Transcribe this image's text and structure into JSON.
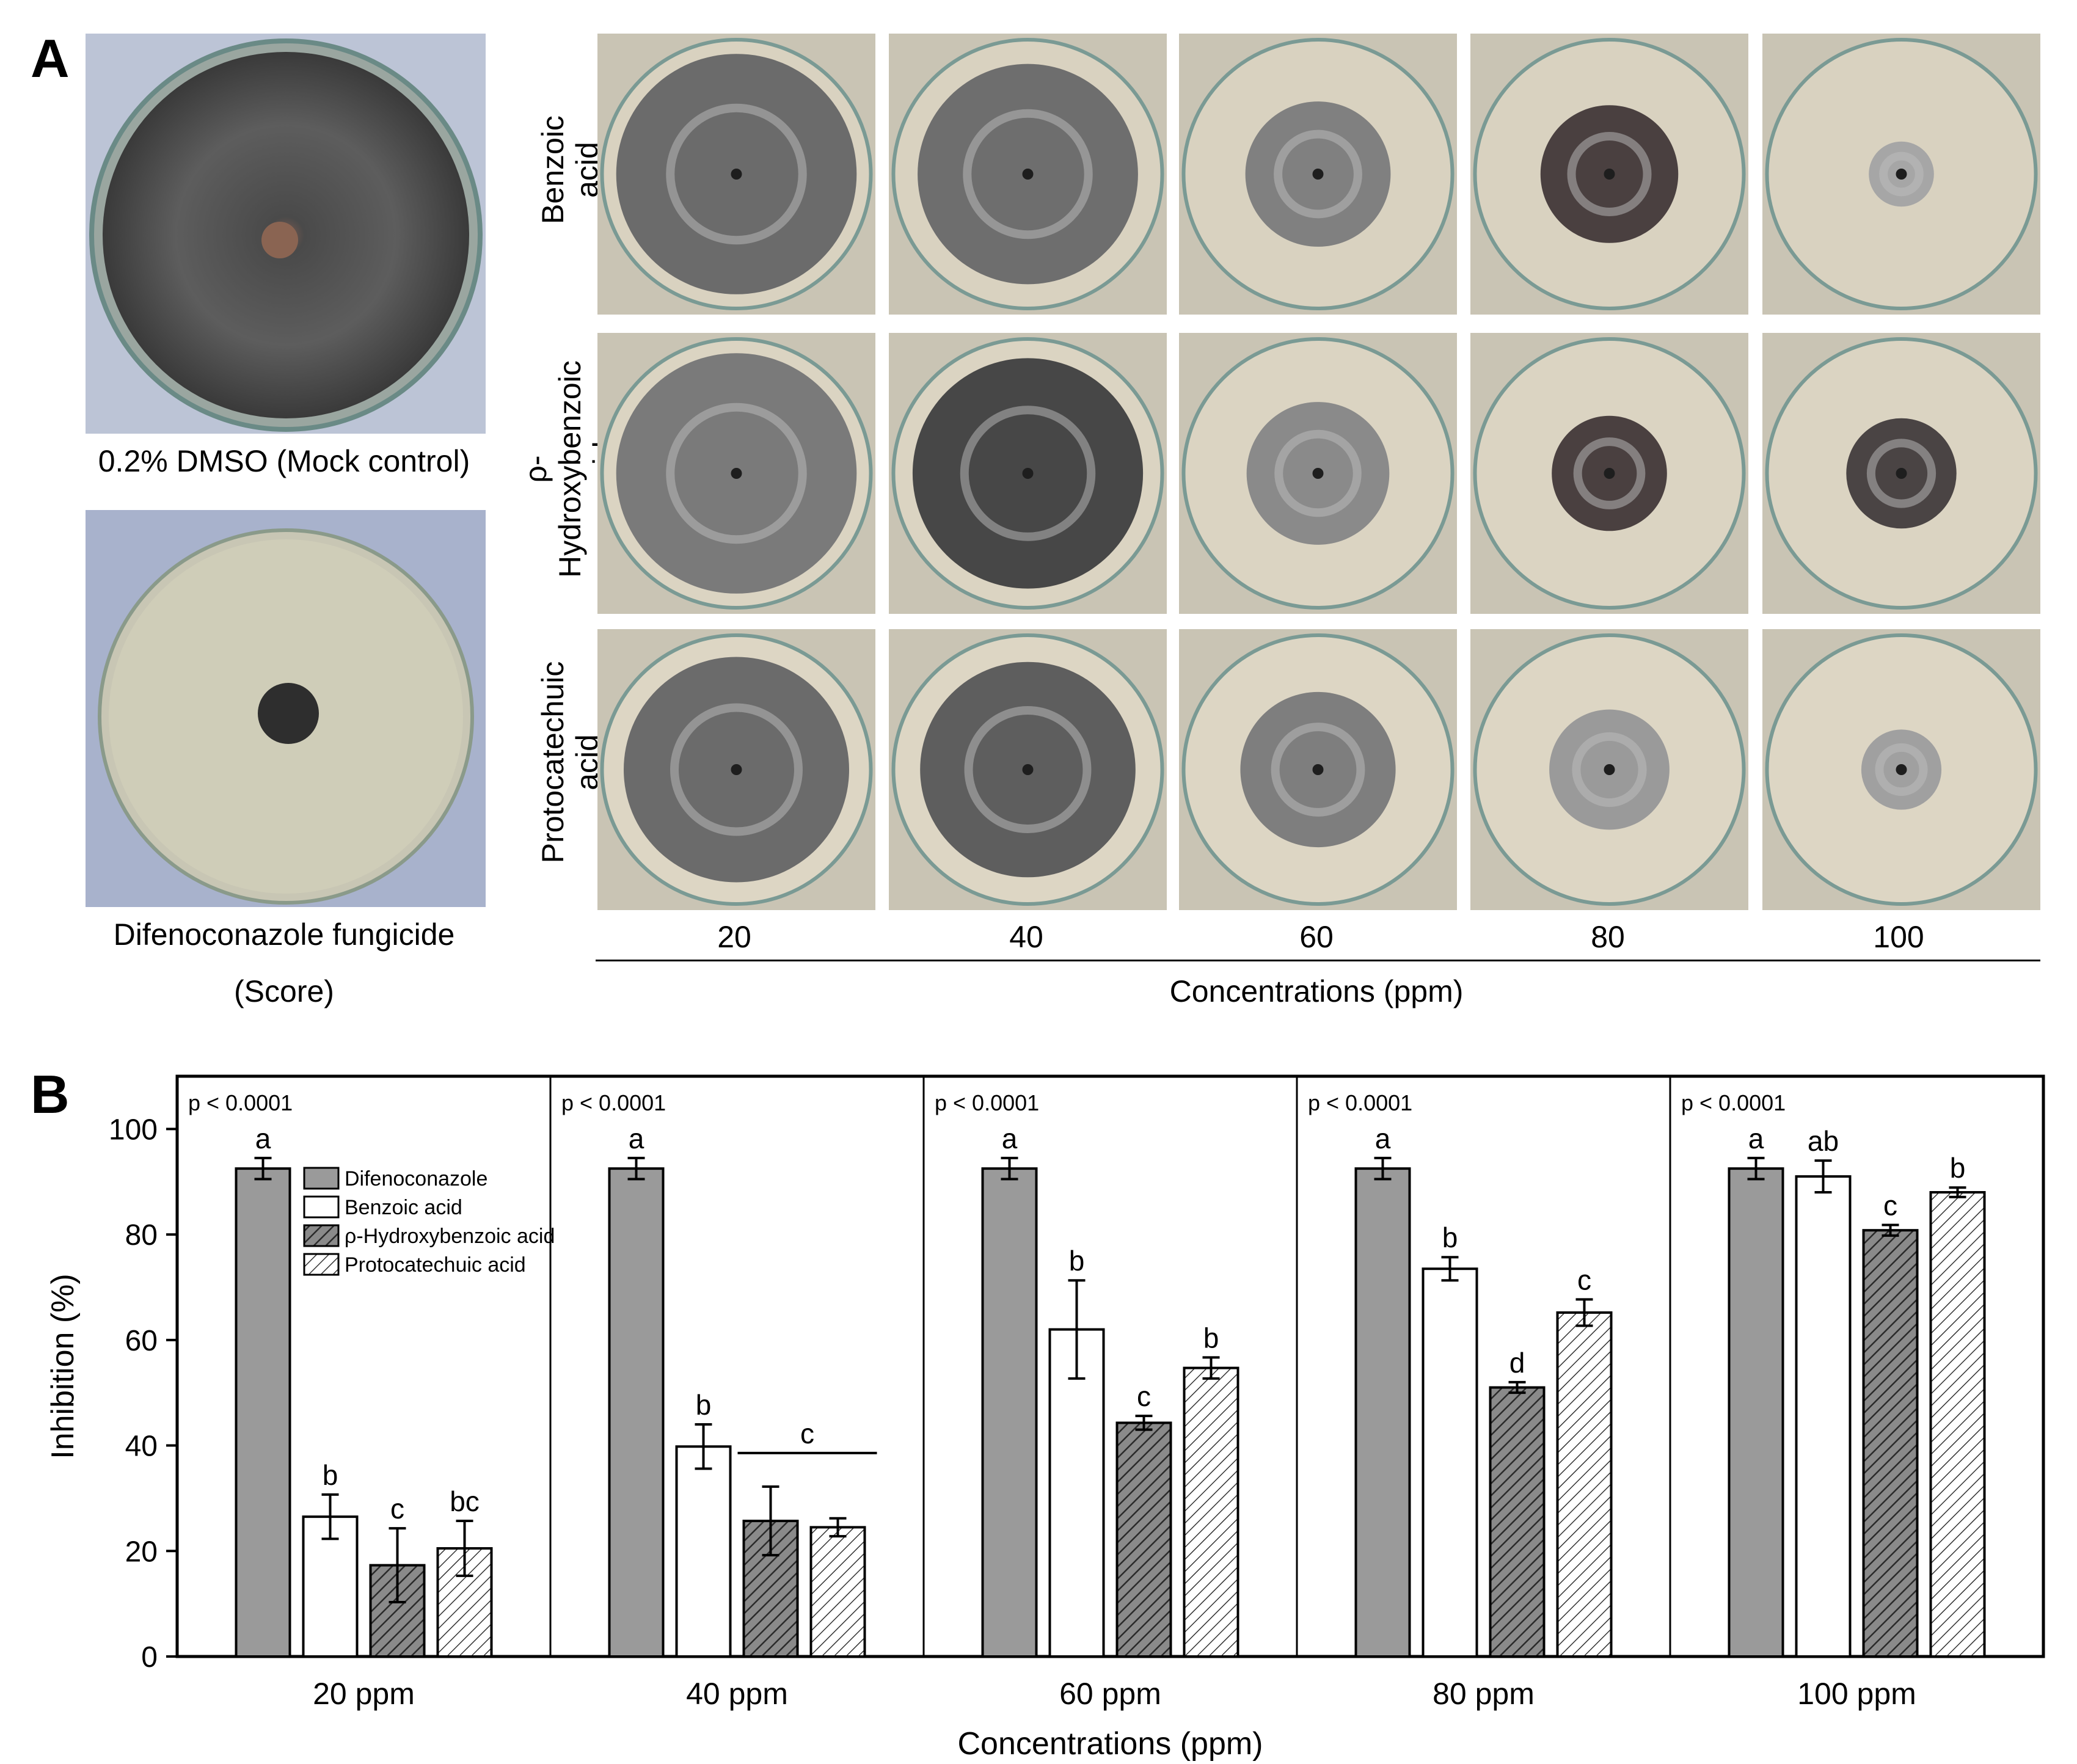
{
  "panelA": {
    "letter": "A",
    "mock_caption": "0.2% DMSO (Mock control)",
    "fungicide_caption_line1": "Difenoconazole fungicide",
    "fungicide_caption_line2": "(Score)",
    "rows": [
      {
        "label_line1": "Benzoic",
        "label_line2": "acid"
      },
      {
        "label_line1": "ρ-Hydroxybenzoic",
        "label_line2": "acid"
      },
      {
        "label_line1": "Protocatechuic",
        "label_line2": "acid"
      }
    ],
    "columns": [
      "20",
      "40",
      "60",
      "80",
      "100"
    ],
    "axis_title": "Concentrations (ppm)"
  },
  "panelB": {
    "letter": "B",
    "chart_data": {
      "type": "bar",
      "ylabel": "Inhibition (%)",
      "xlabel": "Concentrations (ppm)",
      "ylim": [
        0,
        110
      ],
      "yticks": [
        0,
        20,
        40,
        60,
        80,
        100
      ],
      "grid": false,
      "legend_position": "top-left of first group",
      "categories": [
        "20 ppm",
        "40 ppm",
        "60 ppm",
        "80 ppm",
        "100 ppm"
      ],
      "pvalues": [
        "p < 0.0001",
        "p < 0.0001",
        "p < 0.0001",
        "p < 0.0001",
        "p < 0.0001"
      ],
      "series": [
        {
          "name": "Difenoconazole",
          "fill": "#9a9a9a",
          "pattern": "solid",
          "values": [
            92.5,
            92.5,
            92.5,
            92.5,
            92.5
          ],
          "errors": [
            2.0,
            2.0,
            2.0,
            2.0,
            2.0
          ],
          "letters": [
            "a",
            "a",
            "a",
            "a",
            "a"
          ]
        },
        {
          "name": "Benzoic acid",
          "fill": "#ffffff",
          "pattern": "solid",
          "values": [
            26.5,
            39.8,
            62.0,
            73.5,
            91.0
          ],
          "errors": [
            4.2,
            4.2,
            9.3,
            2.2,
            3.0
          ],
          "letters": [
            "b",
            "b",
            "b",
            "b",
            "ab"
          ]
        },
        {
          "name": "ρ-Hydroxybenzoic acid",
          "fill": "#8a8a8a",
          "pattern": "dense-hatch",
          "values": [
            17.3,
            25.7,
            44.3,
            51.0,
            80.8
          ],
          "errors": [
            7.0,
            6.5,
            1.3,
            1.0,
            1.0
          ],
          "letters": [
            "c",
            "",
            "c",
            "d",
            "c"
          ]
        },
        {
          "name": "Protocatechuic acid",
          "fill": "#ffffff",
          "pattern": "hatch",
          "values": [
            20.5,
            24.5,
            54.7,
            65.2,
            88.0
          ],
          "errors": [
            5.2,
            1.7,
            2.0,
            2.5,
            0.9
          ],
          "letters": [
            "bc",
            "",
            "b",
            "c",
            "b"
          ]
        }
      ],
      "annotations": [
        {
          "group": "40 ppm",
          "text": "c",
          "spans_series": [
            "ρ-Hydroxybenzoic acid",
            "Protocatechuic acid"
          ]
        }
      ]
    }
  }
}
